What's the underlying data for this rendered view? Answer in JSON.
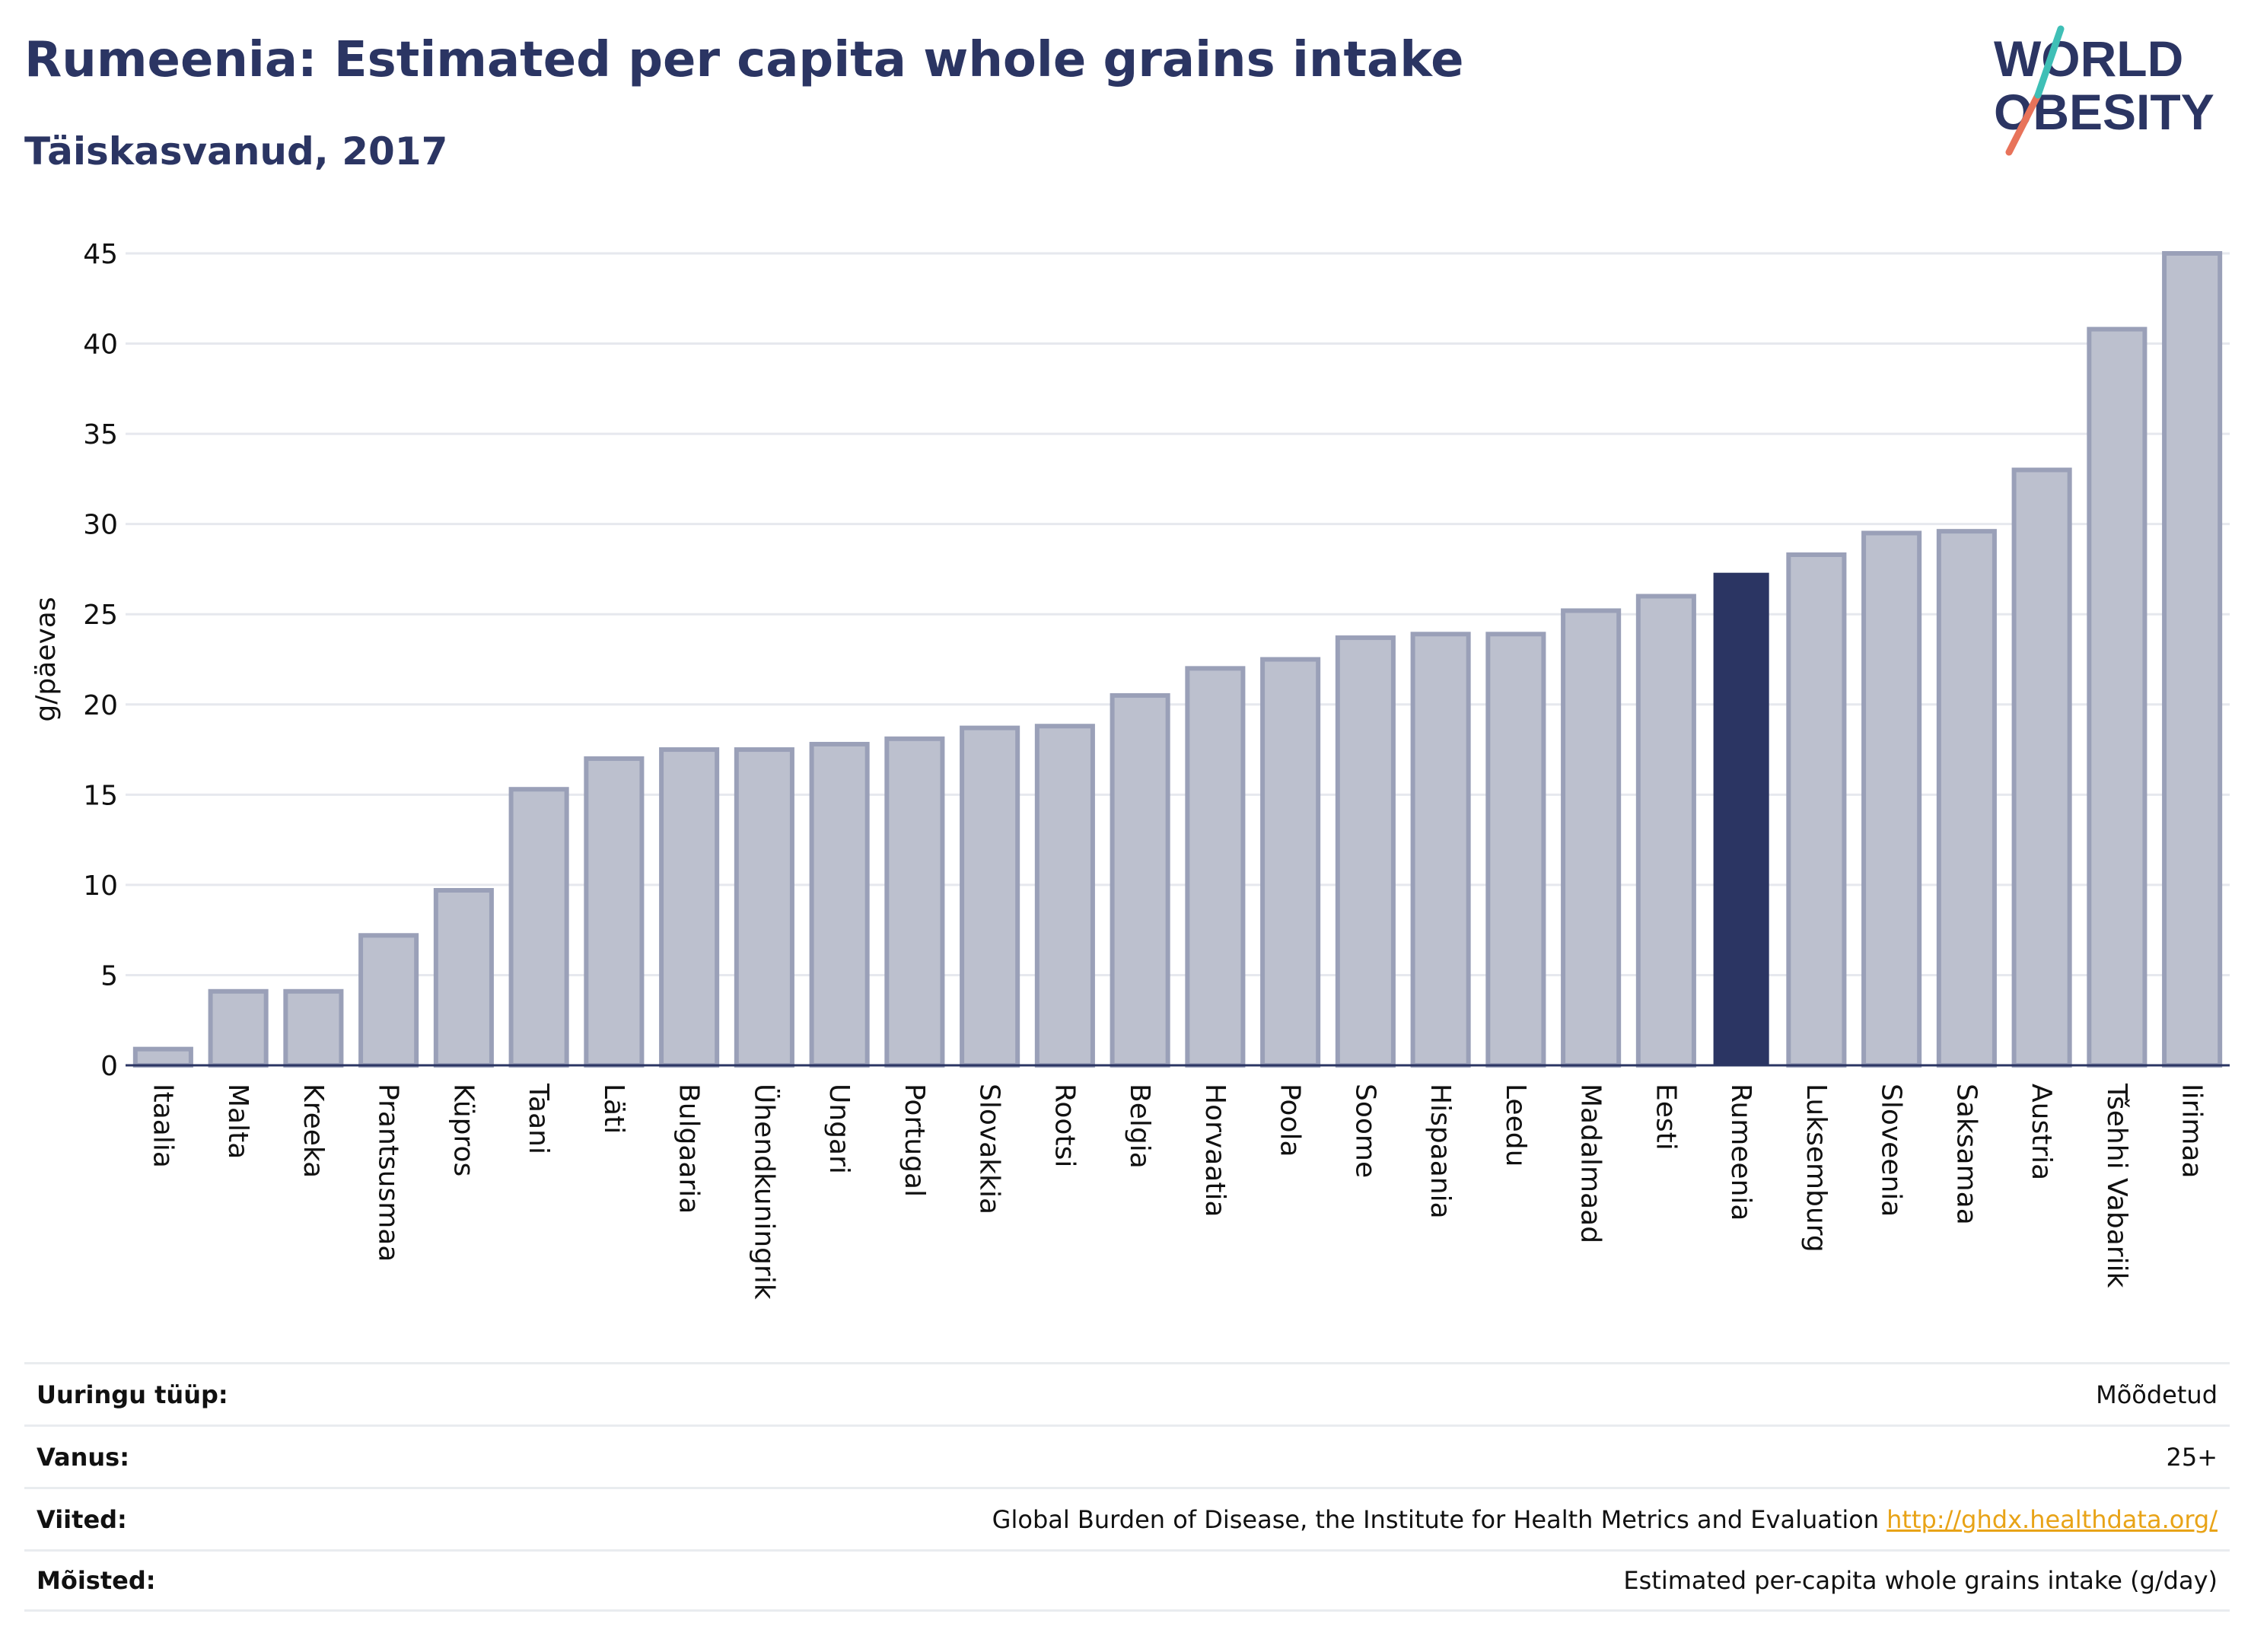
{
  "header": {
    "title": "Rumeenia: Estimated per capita whole grains intake",
    "subtitle": "Täiskasvanud, 2017"
  },
  "logo": {
    "line1": "WORLD",
    "line2": "OBESITY"
  },
  "colors": {
    "bar_default": "#bcc0ce",
    "bar_default_stroke": "#9aa0b8",
    "bar_highlight": "#2b3563",
    "title": "#2b3563",
    "link": "#e8a317"
  },
  "chart_data": {
    "type": "bar",
    "ylabel": "g/päevas",
    "ylim": [
      0,
      45
    ],
    "yticks": [
      0,
      5,
      10,
      15,
      20,
      25,
      30,
      35,
      40,
      45
    ],
    "grid": true,
    "highlight": "Rumeenia",
    "categories": [
      "Itaalia",
      "Malta",
      "Kreeka",
      "Prantsusmaa",
      "Küpros",
      "Taani",
      "Läti",
      "Bulgaaria",
      "Ühendkuningrik",
      "Ungari",
      "Portugal",
      "Slovakkia",
      "Rootsi",
      "Belgia",
      "Horvaatia",
      "Poola",
      "Soome",
      "Hispaania",
      "Leedu",
      "Madalmaad",
      "Eesti",
      "Rumeenia",
      "Luksemburg",
      "Sloveenia",
      "Saksamaa",
      "Austria",
      "Tšehhi Vabariik",
      "Iirimaa"
    ],
    "values": [
      0.9,
      4.1,
      4.1,
      7.2,
      9.7,
      15.3,
      17.0,
      17.5,
      17.5,
      17.8,
      18.1,
      18.7,
      18.8,
      20.5,
      22.0,
      22.5,
      23.7,
      23.9,
      23.9,
      25.2,
      26.0,
      27.3,
      28.3,
      29.5,
      29.6,
      33.0,
      40.8,
      45.0
    ]
  },
  "meta": {
    "rows": [
      {
        "label": "Uuringu tüüp:",
        "value": "Mõõdetud"
      },
      {
        "label": "Vanus:",
        "value": "25+"
      },
      {
        "label": "Viited:",
        "value": "Global Burden of Disease, the Institute for Health Metrics and Evaluation",
        "link": "http://ghdx.healthdata.org/"
      },
      {
        "label": "Mõisted:",
        "value": "Estimated per-capita whole grains intake (g/day)"
      }
    ]
  }
}
